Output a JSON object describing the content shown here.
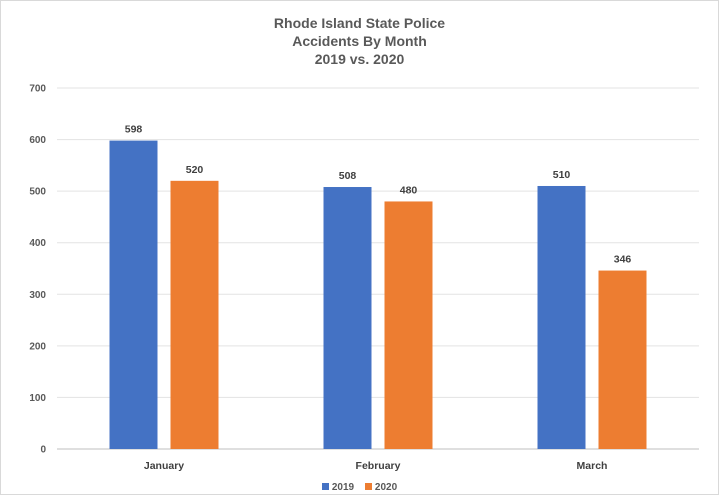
{
  "chart_data": {
    "type": "bar",
    "title": [
      "Rhode Island State Police",
      "Accidents By Month",
      "2019 vs. 2020"
    ],
    "categories": [
      "January",
      "February",
      "March"
    ],
    "series": [
      {
        "name": "2019",
        "values": [
          598,
          508,
          510
        ],
        "color": "#4472c4"
      },
      {
        "name": "2020",
        "values": [
          520,
          480,
          346
        ],
        "color": "#ed7d31"
      }
    ],
    "ylim": [
      0,
      700
    ],
    "yticks": [
      0,
      100,
      200,
      300,
      400,
      500,
      600,
      700
    ],
    "grid": true,
    "legend_position": "bottom"
  }
}
